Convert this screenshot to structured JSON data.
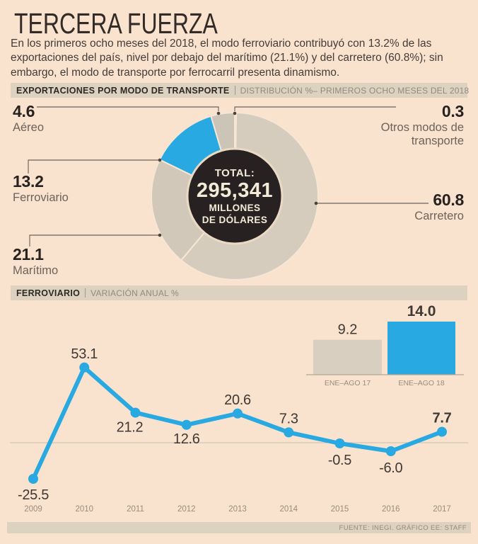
{
  "title": "TERCERA FUERZA",
  "intro": "En los primeros ocho meses del 2018, el modo ferroviario contribuyó con 13.2% de las exportaciones del país, nivel por debajo del marítimo (21.1%) y del carretero (60.8%); sin embargo, el modo de transporte por ferrocarril presenta dinamismo.",
  "colors": {
    "background": "#f9e2ce",
    "accent_blue": "#29a9e1",
    "tan": "#d5cabb",
    "bar_background": "#ddd2c0",
    "dark_text": "#2e2824",
    "gray_text": "#95897a",
    "center_circle": "#272221",
    "center_text": "#f3ead8",
    "leader_line": "#4a433d",
    "zero_line": "#cbbfae"
  },
  "donut_section": {
    "header_title": "EXPORTACIONES POR MODO DE TRANSPORTE",
    "header_subtitle": "DISTRIBUCIÓN %– PRIMEROS OCHO MESES DEL 2018",
    "center": {
      "label": "TOTAL:",
      "value": "295,341",
      "unit_line1": "MILLONES",
      "unit_line2": "DE DÓLARES"
    }
  },
  "line_section": {
    "header_title": "FERROVIARIO",
    "header_subtitle": "VARIACIÓN ANUAL %"
  },
  "footer": {
    "source": "FUENTE: INEGI. GRÁFICO EE: STAFF"
  },
  "chart_data": [
    {
      "type": "pie",
      "title": "Exportaciones por modo de transporte, distribución %, primeros ocho meses del 2018",
      "unit": "%",
      "total_label": "TOTAL: 295,341 millones de dólares",
      "slices": [
        {
          "label": "Otros modos de transporte",
          "value": 0.3,
          "color": "#d5cabb"
        },
        {
          "label": "Carretero",
          "value": 60.8,
          "color": "#d6ccbd"
        },
        {
          "label": "Marítimo",
          "value": 21.1,
          "color": "#d2c8b9"
        },
        {
          "label": "Ferroviario",
          "value": 13.2,
          "color": "#29a9e1"
        },
        {
          "label": "Aéreo",
          "value": 4.6,
          "color": "#ccc4b6"
        }
      ],
      "start_angle_deg": 0,
      "direction": "clockwise",
      "legend_position": "callouts"
    },
    {
      "type": "line",
      "title": "Ferroviario, variación anual %",
      "categories": [
        "2009",
        "2010",
        "2011",
        "2012",
        "2013",
        "2014",
        "2015",
        "2016",
        "2017"
      ],
      "values": [
        -25.5,
        53.1,
        21.2,
        12.6,
        20.6,
        7.3,
        -0.5,
        -6.0,
        7.7
      ],
      "labels": [
        "-25.5",
        "53.1",
        "21.2",
        "12.6",
        "20.6",
        "7.3",
        "-0.5",
        "-6.0",
        "7.7"
      ],
      "line_color": "#29a9e1",
      "grid": "zero-line-only",
      "ylim": [
        -30,
        60
      ]
    },
    {
      "type": "bar",
      "title": "Ferroviario, variación anual %, enero-agosto",
      "categories": [
        "ENE–AGO 17",
        "ENE–AGO 18"
      ],
      "values": [
        9.2,
        14.0
      ],
      "labels": [
        "9.2",
        "14.0"
      ],
      "colors": [
        "#d9cfc0",
        "#29a9e1"
      ],
      "ylim": [
        0,
        14
      ]
    }
  ]
}
